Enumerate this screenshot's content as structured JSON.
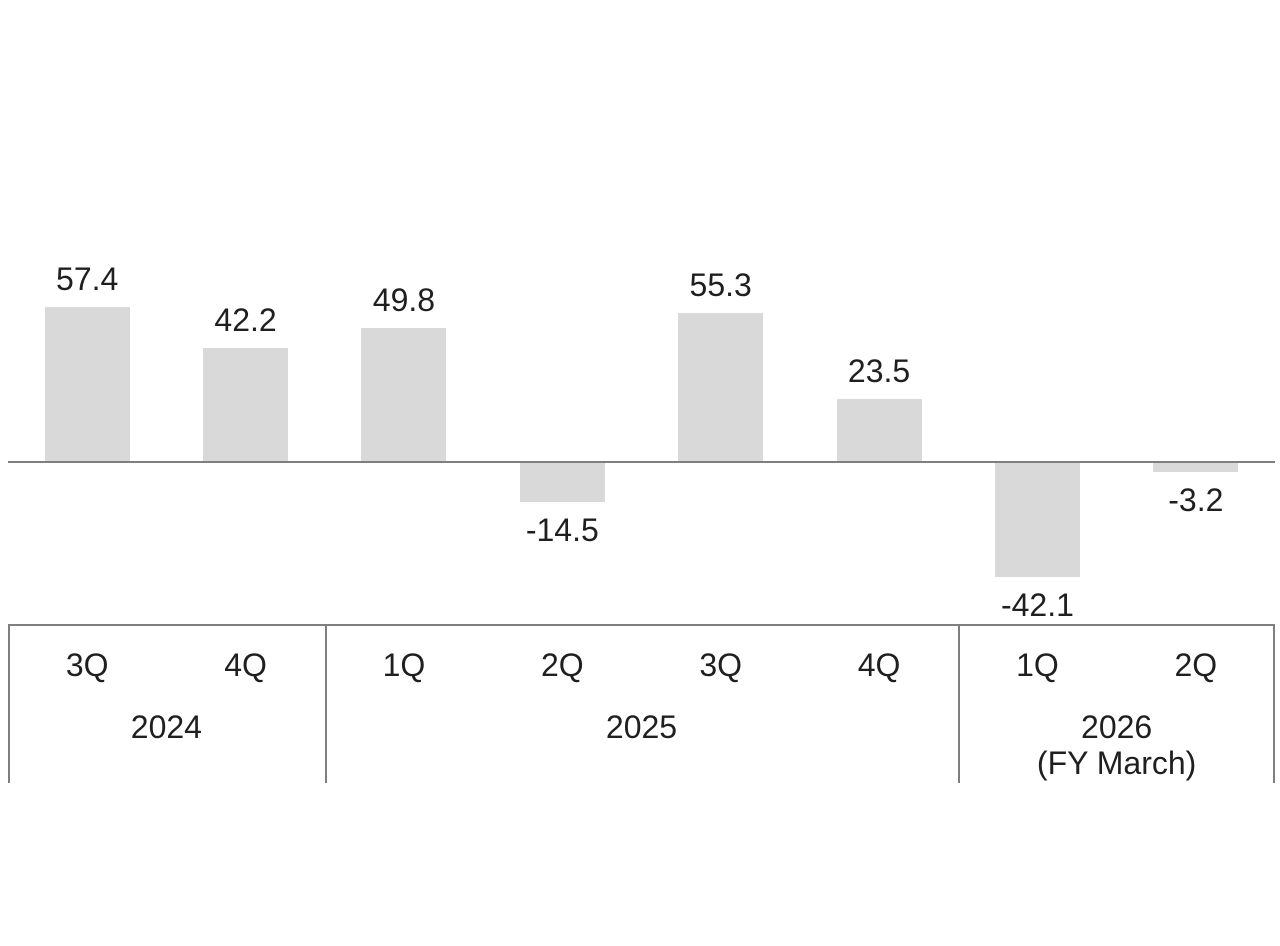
{
  "chart_data": {
    "type": "bar",
    "title": "",
    "xlabel": "",
    "ylabel": "",
    "categories": [
      "3Q",
      "4Q",
      "1Q",
      "2Q",
      "3Q",
      "4Q",
      "1Q",
      "2Q"
    ],
    "values": [
      57.4,
      42.2,
      49.8,
      -14.5,
      55.3,
      23.5,
      -42.1,
      -3.2
    ],
    "value_labels": [
      "57.4",
      "42.2",
      "49.8",
      "-14.5",
      "55.3",
      "23.5",
      "-42.1",
      "-3.2"
    ],
    "year_groups": [
      {
        "label": "2024",
        "sublabel": "",
        "span": 2
      },
      {
        "label": "2025",
        "sublabel": "",
        "span": 4
      },
      {
        "label": "2026",
        "sublabel": "(FY March)",
        "span": 2
      }
    ],
    "axis": {
      "zero_line": true,
      "y_ticks_visible": false,
      "grid": false,
      "legend": false,
      "ylim": [
        -60,
        75
      ]
    },
    "colors": {
      "bar": "#d9d9d9",
      "axis_line": "#7f7f7f",
      "table_border": "#7f7f7f",
      "text": "#1f1f1f",
      "background": "#ffffff"
    }
  }
}
